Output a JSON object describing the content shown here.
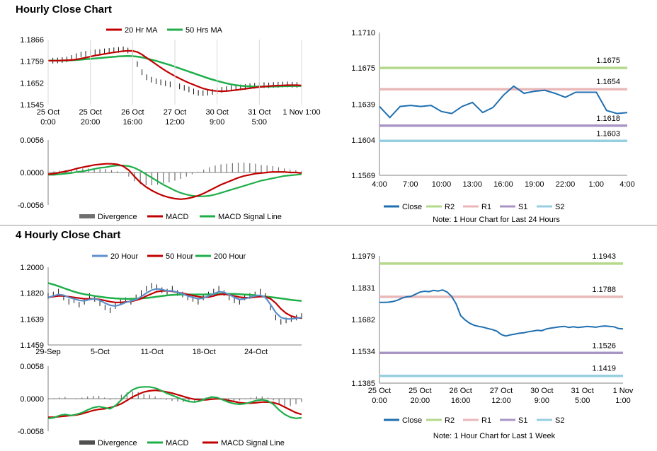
{
  "sections": [
    {
      "title": "Hourly Close Chart"
    },
    {
      "title": "4 Hourly Close Chart"
    }
  ],
  "colors": {
    "ma_short": "#c00000",
    "ma_long": "#1fae4a",
    "ma_mid": "#c00000",
    "ma_fast_4h": "#5b8fc9",
    "close": "#1f6fb0",
    "R2": "#b5d88b",
    "R1": "#e9b7b7",
    "S1": "#a895c4",
    "S2": "#97cfe0",
    "macd_signal": "#1fae4a",
    "divergence": "#707070",
    "grid": "#d9d9d9"
  },
  "chart_data": [
    {
      "id": "hourly-price",
      "type": "line",
      "ylim": [
        1.1545,
        1.1866
      ],
      "yticks": [
        "1.1866",
        "1.1759",
        "1.1652",
        "1.1545"
      ],
      "xticks": [
        [
          "25 Oct",
          "0:00"
        ],
        [
          "25 Oct",
          "20:00"
        ],
        [
          "26 Oct",
          "16:00"
        ],
        [
          "27 Oct",
          "12:00"
        ],
        [
          "30 Oct",
          "9:00"
        ],
        [
          "31 Oct",
          "5:00"
        ],
        [
          "1 Nov 1:00",
          ""
        ]
      ],
      "legend": [
        "20 Hr MA",
        "50 Hrs MA"
      ],
      "price": [
        1.1762,
        1.1762,
        1.1763,
        1.1765,
        1.1768,
        1.1775,
        1.1784,
        1.1792,
        1.1796,
        1.1801,
        1.1803,
        1.1804,
        1.1808,
        1.181,
        1.1813,
        1.1815,
        1.1818,
        1.1812,
        1.18,
        1.1745,
        1.1705,
        1.168,
        1.1668,
        1.166,
        1.1655,
        1.165,
        1.1645,
        1.164,
        1.1635,
        1.1628,
        1.162,
        1.161,
        1.1603,
        1.1602,
        1.1604,
        1.1608,
        1.1612,
        1.1618,
        1.1622,
        1.1626,
        1.1628,
        1.163,
        1.1632,
        1.1636,
        1.1638,
        1.164,
        1.1641,
        1.164,
        1.1642,
        1.1643,
        1.1644,
        1.1645,
        1.1643,
        1.1642,
        1.164
      ],
      "series": [
        {
          "name": "20 Hr MA",
          "values": [
            1.1762,
            1.1762,
            1.1762,
            1.1763,
            1.1764,
            1.1765,
            1.1768,
            1.1772,
            1.1777,
            1.1782,
            1.1787,
            1.1791,
            1.1795,
            1.1799,
            1.1803,
            1.1806,
            1.1809,
            1.1811,
            1.181,
            1.1805,
            1.1792,
            1.1776,
            1.176,
            1.1744,
            1.1728,
            1.1713,
            1.1699,
            1.1686,
            1.1674,
            1.1663,
            1.1652,
            1.1643,
            1.1634,
            1.1625,
            1.1619,
            1.1614,
            1.1612,
            1.1611,
            1.1612,
            1.1614,
            1.1617,
            1.162,
            1.1623,
            1.1626,
            1.1629,
            1.1632,
            1.1634,
            1.1636,
            1.1638,
            1.1639,
            1.164,
            1.1641,
            1.1641,
            1.1641,
            1.164
          ]
        },
        {
          "name": "50 Hrs MA",
          "values": [
            1.1762,
            1.1762,
            1.1762,
            1.1762,
            1.1763,
            1.1764,
            1.1765,
            1.1767,
            1.1769,
            1.1771,
            1.1773,
            1.1775,
            1.1777,
            1.1779,
            1.1781,
            1.1783,
            1.1784,
            1.1785,
            1.1784,
            1.1782,
            1.1778,
            1.1773,
            1.1767,
            1.1761,
            1.1754,
            1.1747,
            1.174,
            1.1732,
            1.1724,
            1.1716,
            1.1708,
            1.17,
            1.1692,
            1.1684,
            1.1676,
            1.1669,
            1.1662,
            1.1656,
            1.165,
            1.1645,
            1.1641,
            1.1638,
            1.1636,
            1.1635,
            1.1634,
            1.1634,
            1.1634,
            1.1634,
            1.1635,
            1.1635,
            1.1636,
            1.1636,
            1.1637,
            1.1637,
            1.1637
          ]
        }
      ]
    },
    {
      "id": "hourly-macd",
      "type": "bar",
      "ylim": [
        -0.0056,
        0.0056
      ],
      "yticks": [
        "0.0056",
        "0.0000",
        "-0.0056"
      ],
      "legend": [
        "Divergence",
        "MACD",
        "MACD Signal Line"
      ],
      "series": [
        {
          "name": "MACD",
          "values": [
            -0.0003,
            -0.0002,
            0.0,
            0.0002,
            0.0004,
            0.0007,
            0.0009,
            0.0011,
            0.0013,
            0.0014,
            0.0015,
            0.0015,
            0.0014,
            0.0011,
            0.0004,
            -0.0007,
            -0.0017,
            -0.0025,
            -0.0031,
            -0.0036,
            -0.004,
            -0.0043,
            -0.0045,
            -0.0046,
            -0.0045,
            -0.0043,
            -0.004,
            -0.0036,
            -0.0031,
            -0.0026,
            -0.0021,
            -0.0017,
            -0.0013,
            -0.0009,
            -0.0006,
            -0.0004,
            -0.0002,
            -0.0001,
            0.0,
            0.0001,
            0.0001,
            0.0001,
            0.0,
            0.0,
            -0.0001
          ]
        },
        {
          "name": "MACD Signal Line",
          "values": [
            -0.0004,
            -0.0004,
            -0.0003,
            -0.0002,
            -0.0001,
            0.0001,
            0.0002,
            0.0004,
            0.0006,
            0.0008,
            0.0009,
            0.0011,
            0.0012,
            0.0012,
            0.0011,
            0.0008,
            0.0003,
            -0.0003,
            -0.0009,
            -0.0015,
            -0.0021,
            -0.0026,
            -0.0031,
            -0.0035,
            -0.0038,
            -0.004,
            -0.0041,
            -0.0041,
            -0.004,
            -0.0038,
            -0.0035,
            -0.0032,
            -0.0029,
            -0.0026,
            -0.0023,
            -0.002,
            -0.0017,
            -0.0014,
            -0.0012,
            -0.001,
            -0.0008,
            -0.0006,
            -0.0005,
            -0.0004,
            -0.0003
          ]
        },
        {
          "name": "Divergence",
          "values": [
            0.0001,
            0.0002,
            0.0003,
            0.0004,
            0.0005,
            0.0006,
            0.0007,
            0.0007,
            0.0007,
            0.0006,
            0.0006,
            0.0004,
            0.0002,
            -0.0001,
            -0.0007,
            -0.0015,
            -0.002,
            -0.0022,
            -0.0022,
            -0.0021,
            -0.0019,
            -0.0017,
            -0.0014,
            -0.0011,
            -0.0007,
            -0.0003,
            0.0001,
            0.0005,
            0.0009,
            0.0012,
            0.0014,
            0.0015,
            0.0016,
            0.0017,
            0.0017,
            0.0016,
            0.0015,
            0.0013,
            0.0012,
            0.0011,
            0.0009,
            0.0007,
            0.0005,
            0.0004,
            0.0002
          ]
        }
      ]
    },
    {
      "id": "hourly-close-24h",
      "type": "line",
      "ylim": [
        1.1569,
        1.171
      ],
      "yticks": [
        "1.1710",
        "1.1675",
        "1.1639",
        "1.1604",
        "1.1569"
      ],
      "xticks": [
        "4:00",
        "7:00",
        "10:00",
        "13:00",
        "16:00",
        "19:00",
        "22:00",
        "1:00",
        "4:00"
      ],
      "levels": [
        {
          "name": "R2",
          "value": 1.1675,
          "label": "1.1675"
        },
        {
          "name": "R1",
          "value": 1.1654,
          "label": "1.1654"
        },
        {
          "name": "S1",
          "value": 1.1618,
          "label": "1.1618"
        },
        {
          "name": "S2",
          "value": 1.1603,
          "label": "1.1603"
        }
      ],
      "series": [
        {
          "name": "Close",
          "values": [
            1.1637,
            1.1626,
            1.1637,
            1.1638,
            1.1637,
            1.1638,
            1.1632,
            1.163,
            1.1637,
            1.1641,
            1.1631,
            1.1636,
            1.1648,
            1.1657,
            1.165,
            1.1652,
            1.1653,
            1.165,
            1.1646,
            1.1651,
            1.1651,
            1.1651,
            1.1633,
            1.163,
            1.1631
          ]
        }
      ],
      "legend": [
        "Close",
        "R2",
        "R1",
        "S1",
        "S2"
      ],
      "note": "Note: 1 Hour Chart for Last 24 Hours"
    },
    {
      "id": "4hourly-price",
      "type": "line",
      "ylim": [
        1.1459,
        1.2
      ],
      "yticks": [
        "1.2000",
        "1.1820",
        "1.1639",
        "1.1459"
      ],
      "xticks": [
        "29-Sep",
        "5-Oct",
        "11-Oct",
        "18-Oct",
        "24-Oct"
      ],
      "legend": [
        "20 Hour",
        "50 Hour",
        "200 Hour"
      ],
      "price": [
        1.18,
        1.181,
        1.183,
        1.179,
        1.176,
        1.177,
        1.174,
        1.176,
        1.18,
        1.178,
        1.175,
        1.172,
        1.17,
        1.173,
        1.176,
        1.177,
        1.176,
        1.179,
        1.182,
        1.185,
        1.187,
        1.186,
        1.184,
        1.183,
        1.185,
        1.182,
        1.181,
        1.179,
        1.178,
        1.176,
        1.179,
        1.181,
        1.183,
        1.185,
        1.182,
        1.179,
        1.177,
        1.176,
        1.179,
        1.18,
        1.181,
        1.183,
        1.18,
        1.172,
        1.165,
        1.162,
        1.163,
        1.164,
        1.165,
        1.166
      ],
      "series": [
        {
          "name": "20 Hour",
          "values": [
            1.179,
            1.18,
            1.181,
            1.1805,
            1.179,
            1.178,
            1.177,
            1.1765,
            1.1775,
            1.178,
            1.177,
            1.175,
            1.1735,
            1.173,
            1.174,
            1.1755,
            1.1765,
            1.1775,
            1.1795,
            1.182,
            1.184,
            1.185,
            1.1845,
            1.1835,
            1.1835,
            1.1825,
            1.1815,
            1.18,
            1.179,
            1.178,
            1.1785,
            1.18,
            1.1815,
            1.183,
            1.1825,
            1.181,
            1.179,
            1.1775,
            1.178,
            1.179,
            1.18,
            1.1805,
            1.179,
            1.174,
            1.1685,
            1.165,
            1.164,
            1.164,
            1.1645,
            1.165
          ]
        },
        {
          "name": "50 Hour",
          "values": [
            1.179,
            1.1795,
            1.18,
            1.18,
            1.1795,
            1.179,
            1.1785,
            1.178,
            1.178,
            1.178,
            1.1775,
            1.1768,
            1.176,
            1.1755,
            1.1755,
            1.1758,
            1.1762,
            1.177,
            1.1782,
            1.18,
            1.1815,
            1.183,
            1.1835,
            1.1835,
            1.1832,
            1.1825,
            1.1818,
            1.181,
            1.1803,
            1.1795,
            1.179,
            1.1792,
            1.18,
            1.181,
            1.1812,
            1.1808,
            1.18,
            1.1792,
            1.1788,
            1.1788,
            1.1792,
            1.1796,
            1.1795,
            1.178,
            1.175,
            1.171,
            1.168,
            1.166,
            1.165,
            1.1645
          ]
        },
        {
          "name": "200 Hour",
          "values": [
            1.189,
            1.188,
            1.1868,
            1.1855,
            1.1842,
            1.183,
            1.182,
            1.1812,
            1.1806,
            1.18,
            1.1795,
            1.179,
            1.1786,
            1.1783,
            1.1781,
            1.178,
            1.178,
            1.1781,
            1.1783,
            1.1786,
            1.179,
            1.1795,
            1.18,
            1.1804,
            1.1807,
            1.1809,
            1.181,
            1.181,
            1.181,
            1.181,
            1.181,
            1.1811,
            1.1812,
            1.1814,
            1.1815,
            1.1815,
            1.1814,
            1.1812,
            1.181,
            1.1808,
            1.1805,
            1.18,
            1.1796,
            1.1792,
            1.1788,
            1.1783,
            1.1778,
            1.1773,
            1.1769,
            1.1766
          ]
        }
      ]
    },
    {
      "id": "4hourly-macd",
      "type": "bar",
      "ylim": [
        -0.0058,
        0.0058
      ],
      "yticks": [
        "0.0058",
        "0.0000",
        "-0.0058"
      ],
      "legend": [
        "Divergence",
        "MACD",
        "MACD Signal Line"
      ],
      "series": [
        {
          "name": "MACD",
          "values": [
            -0.0035,
            -0.0034,
            -0.003,
            -0.0028,
            -0.003,
            -0.0028,
            -0.0025,
            -0.002,
            -0.0016,
            -0.0014,
            -0.0016,
            -0.0018,
            -0.0012,
            -0.0002,
            0.0008,
            0.0016,
            0.002,
            0.0021,
            0.0021,
            0.0019,
            0.0015,
            0.001,
            0.0006,
            0.0002,
            -0.0002,
            -0.0005,
            -0.0006,
            -0.0004,
            0.0,
            0.0003,
            0.0002,
            -0.0002,
            -0.0006,
            -0.0009,
            -0.001,
            -0.0009,
            -0.0006,
            -0.0003,
            -0.0002,
            -0.0004,
            -0.001,
            -0.002,
            -0.0028,
            -0.0033,
            -0.0035,
            -0.0034
          ]
        },
        {
          "name": "MACD Signal Line",
          "values": [
            -0.0033,
            -0.0033,
            -0.0032,
            -0.0031,
            -0.003,
            -0.0029,
            -0.0027,
            -0.0024,
            -0.0021,
            -0.0019,
            -0.0018,
            -0.0016,
            -0.0013,
            -0.0009,
            -0.0003,
            0.0003,
            0.0008,
            0.0012,
            0.0014,
            0.0015,
            0.0014,
            0.0012,
            0.001,
            0.0007,
            0.0004,
            0.0001,
            -0.0001,
            -0.0002,
            -0.0002,
            -0.0001,
            0.0,
            -0.0001,
            -0.0003,
            -0.0005,
            -0.0007,
            -0.0008,
            -0.0008,
            -0.0007,
            -0.0006,
            -0.0006,
            -0.0007,
            -0.001,
            -0.0015,
            -0.002,
            -0.0025,
            -0.0028
          ]
        },
        {
          "name": "Divergence",
          "values": [
            -0.0002,
            -0.0001,
            0.0002,
            0.0003,
            0.0,
            0.0001,
            0.0002,
            0.0004,
            0.0005,
            0.0005,
            0.0002,
            -0.0002,
            0.0001,
            0.0007,
            0.0011,
            0.0013,
            0.0012,
            0.0009,
            0.0007,
            0.0004,
            0.0001,
            -0.0002,
            -0.0004,
            -0.0005,
            -0.0006,
            -0.0006,
            -0.0005,
            -0.0002,
            0.0002,
            0.0004,
            0.0002,
            -0.0001,
            -0.0003,
            -0.0004,
            -0.0003,
            -0.0001,
            0.0002,
            0.0004,
            0.0004,
            0.0002,
            -0.0003,
            -0.001,
            -0.0013,
            -0.0013,
            -0.001,
            -0.0006
          ]
        }
      ]
    },
    {
      "id": "4hourly-close-1w",
      "type": "line",
      "ylim": [
        1.1385,
        1.1979
      ],
      "yticks": [
        "1.1979",
        "1.1831",
        "1.1682",
        "1.1534",
        "1.1385"
      ],
      "xticks": [
        [
          "25 Oct",
          "0:00"
        ],
        [
          "25 Oct",
          "20:00"
        ],
        [
          "26 Oct",
          "16:00"
        ],
        [
          "27 Oct",
          "12:00"
        ],
        [
          "30 Oct",
          "9:00"
        ],
        [
          "31 Oct",
          "5:00"
        ],
        [
          "1 Nov",
          "1:00"
        ]
      ],
      "levels": [
        {
          "name": "R2",
          "value": 1.1943,
          "label": "1.1943"
        },
        {
          "name": "R1",
          "value": 1.1788,
          "label": "1.1788"
        },
        {
          "name": "S1",
          "value": 1.1526,
          "label": "1.1526"
        },
        {
          "name": "S2",
          "value": 1.1419,
          "label": "1.1419"
        }
      ],
      "series": [
        {
          "name": "Close",
          "values": [
            1.1762,
            1.1762,
            1.1763,
            1.1766,
            1.1772,
            1.1782,
            1.1788,
            1.179,
            1.18,
            1.181,
            1.1814,
            1.1812,
            1.1818,
            1.1815,
            1.182,
            1.181,
            1.179,
            1.1755,
            1.17,
            1.168,
            1.1665,
            1.1655,
            1.165,
            1.1646,
            1.164,
            1.1635,
            1.1628,
            1.1612,
            1.1605,
            1.161,
            1.1614,
            1.1618,
            1.162,
            1.1625,
            1.1628,
            1.1632,
            1.163,
            1.1638,
            1.1642,
            1.1645,
            1.1648,
            1.165,
            1.1645,
            1.1648,
            1.1645,
            1.1647,
            1.165,
            1.1648,
            1.1646,
            1.165,
            1.1652,
            1.165,
            1.1648,
            1.164,
            1.1638
          ]
        }
      ],
      "legend": [
        "Close",
        "R2",
        "R1",
        "S1",
        "S2"
      ],
      "note": "Note: 1 Hour Chart for Last 1 Week"
    }
  ]
}
